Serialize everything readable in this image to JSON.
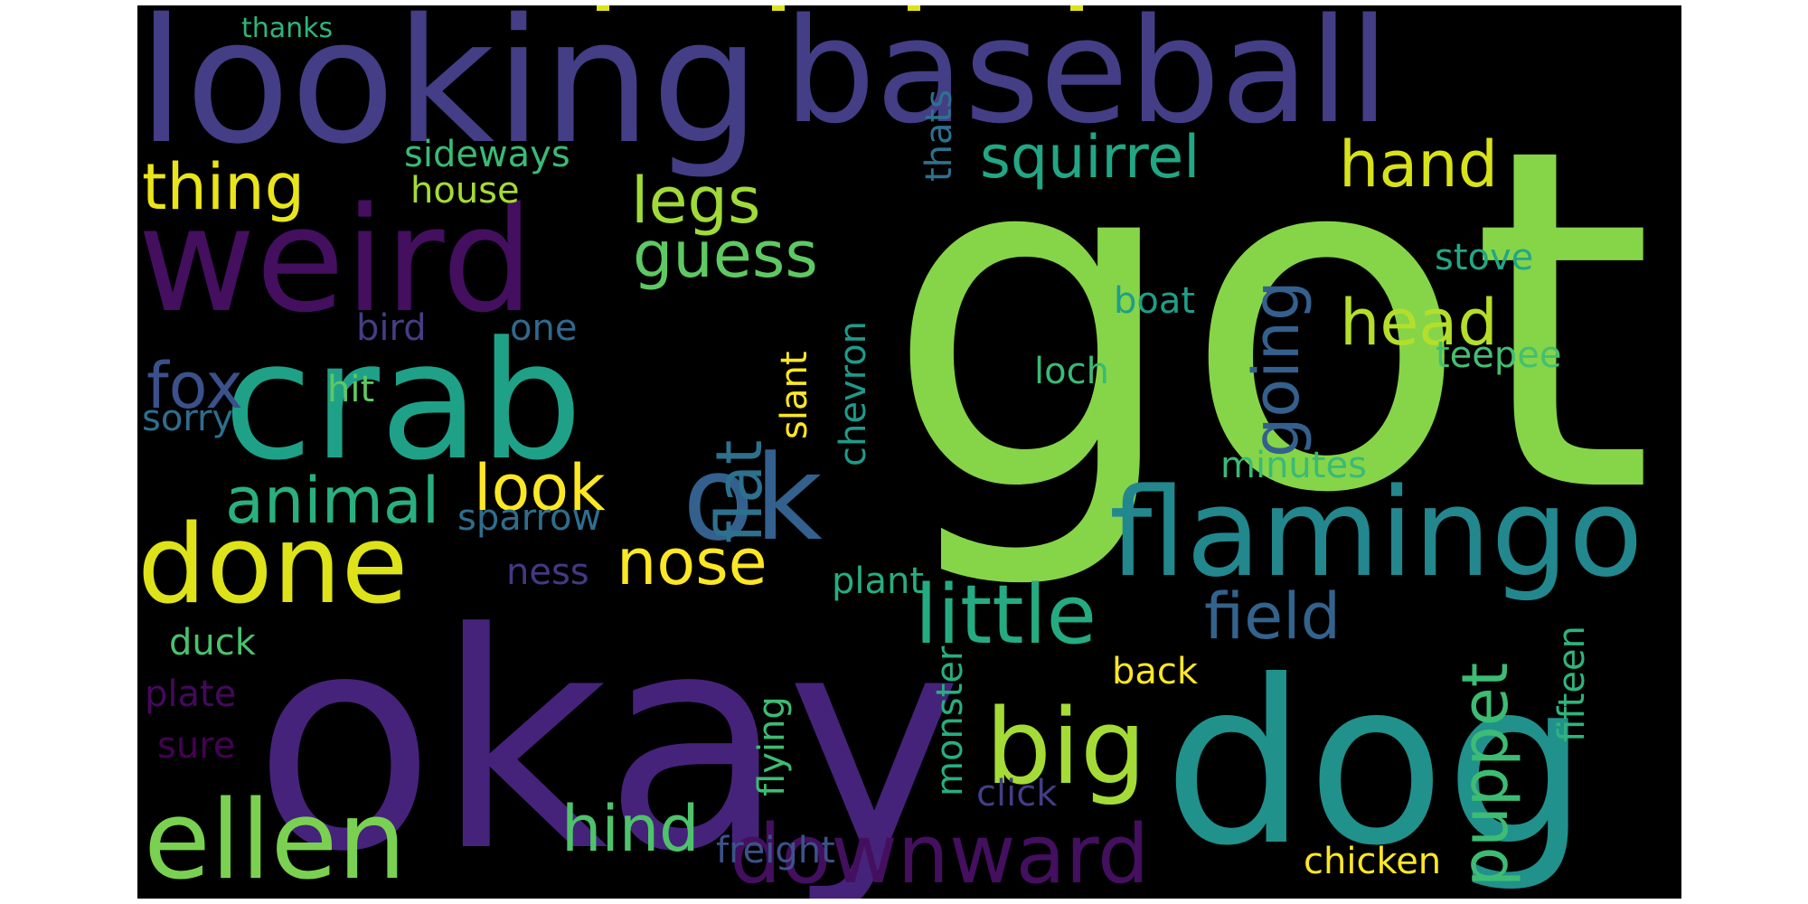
{
  "palette": {
    "background": "#000000",
    "page": "#ffffff"
  },
  "words": [
    {
      "text": "got",
      "color": "#86d549"
    },
    {
      "text": "okay",
      "color": "#46237a"
    },
    {
      "text": "looking",
      "color": "#433e85"
    },
    {
      "text": "baseball",
      "color": "#433e85"
    },
    {
      "text": "weird",
      "color": "#440f5f"
    },
    {
      "text": "crab",
      "color": "#1fa188"
    },
    {
      "text": "dog",
      "color": "#21918c"
    },
    {
      "text": "flamingo",
      "color": "#23878e"
    },
    {
      "text": "ok",
      "color": "#34608d"
    },
    {
      "text": "done",
      "color": "#dde318"
    },
    {
      "text": "ellen",
      "color": "#7ad151"
    },
    {
      "text": "big",
      "color": "#a5db36"
    },
    {
      "text": "little",
      "color": "#25ab82"
    },
    {
      "text": "downward",
      "color": "#440f5f"
    },
    {
      "text": "squirrel",
      "color": "#22a785"
    },
    {
      "text": "hand",
      "color": "#d8e219"
    },
    {
      "text": "thing",
      "color": "#eae51a"
    },
    {
      "text": "legs",
      "color": "#a0da39"
    },
    {
      "text": "guess",
      "color": "#5ec962"
    },
    {
      "text": "head",
      "color": "#b5de2b"
    },
    {
      "text": "going",
      "color": "#34608d"
    },
    {
      "text": "flat",
      "color": "#2c718e"
    },
    {
      "text": "fox",
      "color": "#3b518b"
    },
    {
      "text": "animal",
      "color": "#2ab07f"
    },
    {
      "text": "look",
      "color": "#fde725"
    },
    {
      "text": "nose",
      "color": "#fde725"
    },
    {
      "text": "field",
      "color": "#33638d"
    },
    {
      "text": "puppet",
      "color": "#3dbc74"
    },
    {
      "text": "hind",
      "color": "#4ec36b"
    },
    {
      "text": "sideways",
      "color": "#3aba76"
    },
    {
      "text": "house",
      "color": "#a5db36"
    },
    {
      "text": "thats",
      "color": "#2d718e"
    },
    {
      "text": "stove",
      "color": "#22a785"
    },
    {
      "text": "boat",
      "color": "#1f9e89"
    },
    {
      "text": "teepee",
      "color": "#44bf70"
    },
    {
      "text": "loch",
      "color": "#3aba76"
    },
    {
      "text": "hit",
      "color": "#5ec962"
    },
    {
      "text": "bird",
      "color": "#433e85"
    },
    {
      "text": "one",
      "color": "#31688e"
    },
    {
      "text": "sorry",
      "color": "#2e6e8e"
    },
    {
      "text": "slant",
      "color": "#fde725"
    },
    {
      "text": "chevron",
      "color": "#1f9a8a"
    },
    {
      "text": "minutes",
      "color": "#3aba76"
    },
    {
      "text": "sparrow",
      "color": "#2e6e8e"
    },
    {
      "text": "ness",
      "color": "#443983"
    },
    {
      "text": "plant",
      "color": "#27ad81"
    },
    {
      "text": "duck",
      "color": "#4ac16d"
    },
    {
      "text": "plate",
      "color": "#46085c"
    },
    {
      "text": "sure",
      "color": "#440154"
    },
    {
      "text": "monster",
      "color": "#28ae80"
    },
    {
      "text": "flying",
      "color": "#3dbc74"
    },
    {
      "text": "back",
      "color": "#fde725"
    },
    {
      "text": "fifteen",
      "color": "#2fb47c"
    },
    {
      "text": "click",
      "color": "#433e85"
    },
    {
      "text": "freight",
      "color": "#3b528b"
    },
    {
      "text": "chicken",
      "color": "#fde725"
    },
    {
      "text": "thanks",
      "color": "#2fb47c"
    }
  ]
}
